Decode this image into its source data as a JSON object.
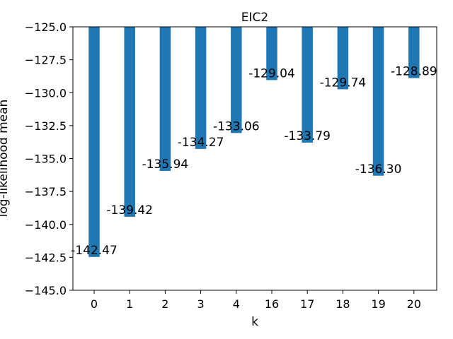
{
  "chart_data": {
    "type": "bar",
    "title": "EIC2",
    "xlabel": "k",
    "ylabel": "log-likelihood mean",
    "categories": [
      "0",
      "1",
      "2",
      "3",
      "4",
      "16",
      "17",
      "18",
      "19",
      "20"
    ],
    "values": [
      -142.47,
      -139.42,
      -135.94,
      -134.27,
      -133.06,
      -129.04,
      -133.79,
      -129.74,
      -136.3,
      -128.89
    ],
    "data_labels": [
      "-142.47",
      "-139.42",
      "-135.94",
      "-134.27",
      "-133.06",
      "-129.04",
      "-133.79",
      "-129.74",
      "-136.30",
      "-128.89"
    ],
    "ylim": [
      -145.0,
      -125.0
    ],
    "yticks": [
      -125.0,
      -127.5,
      -130.0,
      -132.5,
      -135.0,
      -137.5,
      -140.0,
      -142.5,
      -145.0
    ],
    "ytick_labels": [
      "−125.0",
      "−127.5",
      "−130.0",
      "−132.5",
      "−135.0",
      "−137.5",
      "−140.0",
      "−142.5",
      "−145.0"
    ],
    "bar_color": "#1f77b4",
    "grid": false,
    "legend": false
  }
}
